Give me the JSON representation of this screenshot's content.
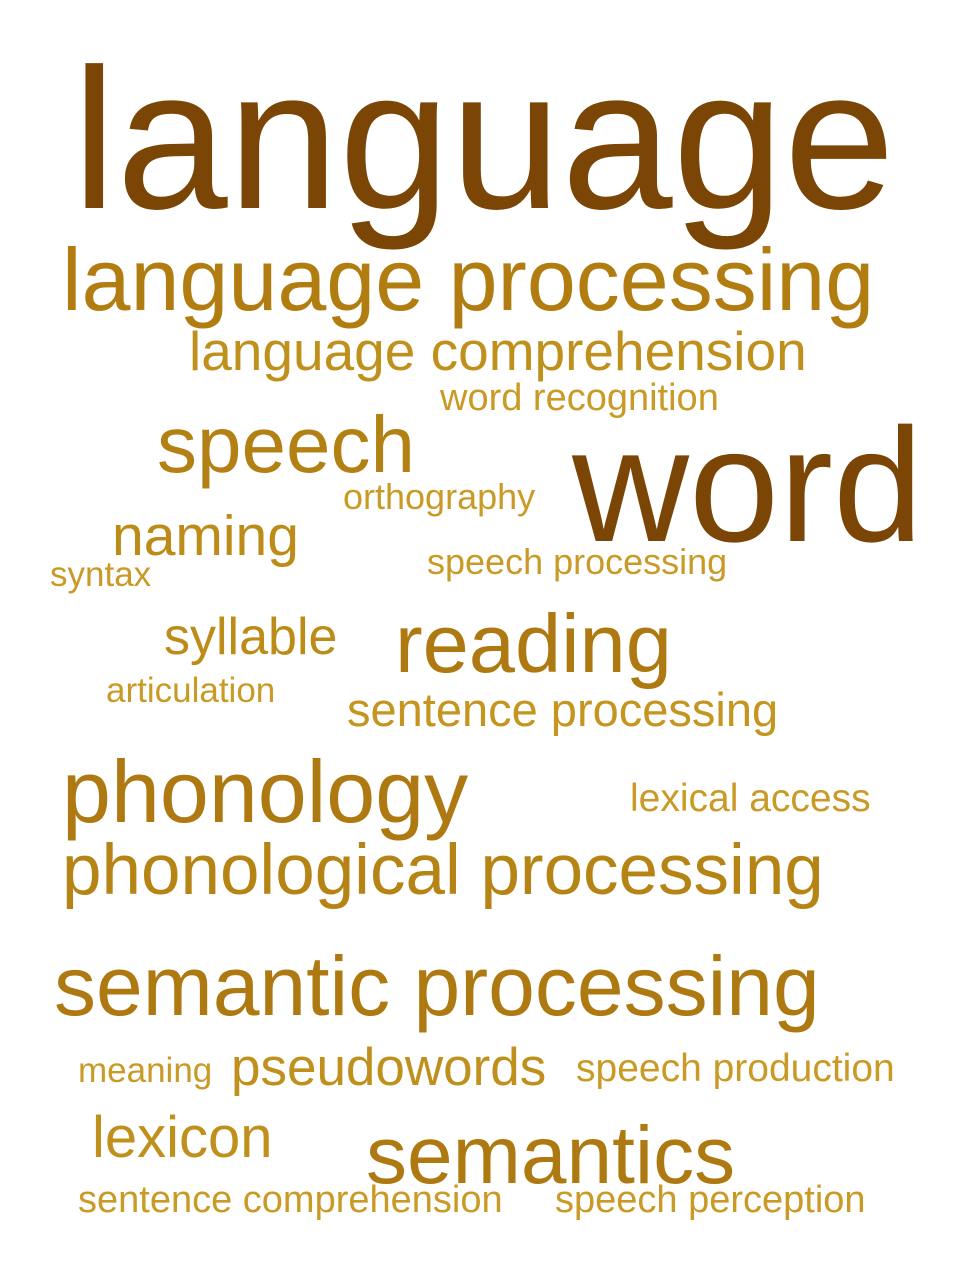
{
  "word_cloud": {
    "words": [
      {
        "id": "language",
        "text": "language",
        "color": "#7a4505"
      },
      {
        "id": "language-processing",
        "text": "language processing",
        "color": "#b27d10"
      },
      {
        "id": "language-comprehension",
        "text": "language comprehension",
        "color": "#c0901c"
      },
      {
        "id": "word-recognition",
        "text": "word recognition",
        "color": "#c99a26"
      },
      {
        "id": "speech",
        "text": "speech",
        "color": "#b38014"
      },
      {
        "id": "word",
        "text": "word",
        "color": "#7a4505"
      },
      {
        "id": "orthography",
        "text": "orthography",
        "color": "#c99a26"
      },
      {
        "id": "naming",
        "text": "naming",
        "color": "#bd8c18"
      },
      {
        "id": "syntax",
        "text": "syntax",
        "color": "#c99a26"
      },
      {
        "id": "speech-processing",
        "text": "speech processing",
        "color": "#c99a26"
      },
      {
        "id": "syllable",
        "text": "syllable",
        "color": "#bd8c18"
      },
      {
        "id": "reading",
        "text": "reading",
        "color": "#ad7910"
      },
      {
        "id": "articulation",
        "text": "articulation",
        "color": "#c99a26"
      },
      {
        "id": "sentence-processing",
        "text": "sentence processing",
        "color": "#c5951f"
      },
      {
        "id": "phonology",
        "text": "phonology",
        "color": "#ad7910"
      },
      {
        "id": "lexical-access",
        "text": "lexical access",
        "color": "#c99a26"
      },
      {
        "id": "phonological-processing",
        "text": "phonological processing",
        "color": "#b58414"
      },
      {
        "id": "semantic-processing",
        "text": "semantic processing",
        "color": "#ad7910"
      },
      {
        "id": "meaning",
        "text": "meaning",
        "color": "#c99a26"
      },
      {
        "id": "pseudowords",
        "text": "pseudowords",
        "color": "#c0901c"
      },
      {
        "id": "speech-production",
        "text": "speech production",
        "color": "#c99a26"
      },
      {
        "id": "lexicon",
        "text": "lexicon",
        "color": "#c0901c"
      },
      {
        "id": "semantics",
        "text": "semantics",
        "color": "#ad7910"
      },
      {
        "id": "sentence-comprehension",
        "text": "sentence comprehension",
        "color": "#c99a26"
      },
      {
        "id": "speech-perception",
        "text": "speech perception",
        "color": "#c99a26"
      }
    ]
  }
}
